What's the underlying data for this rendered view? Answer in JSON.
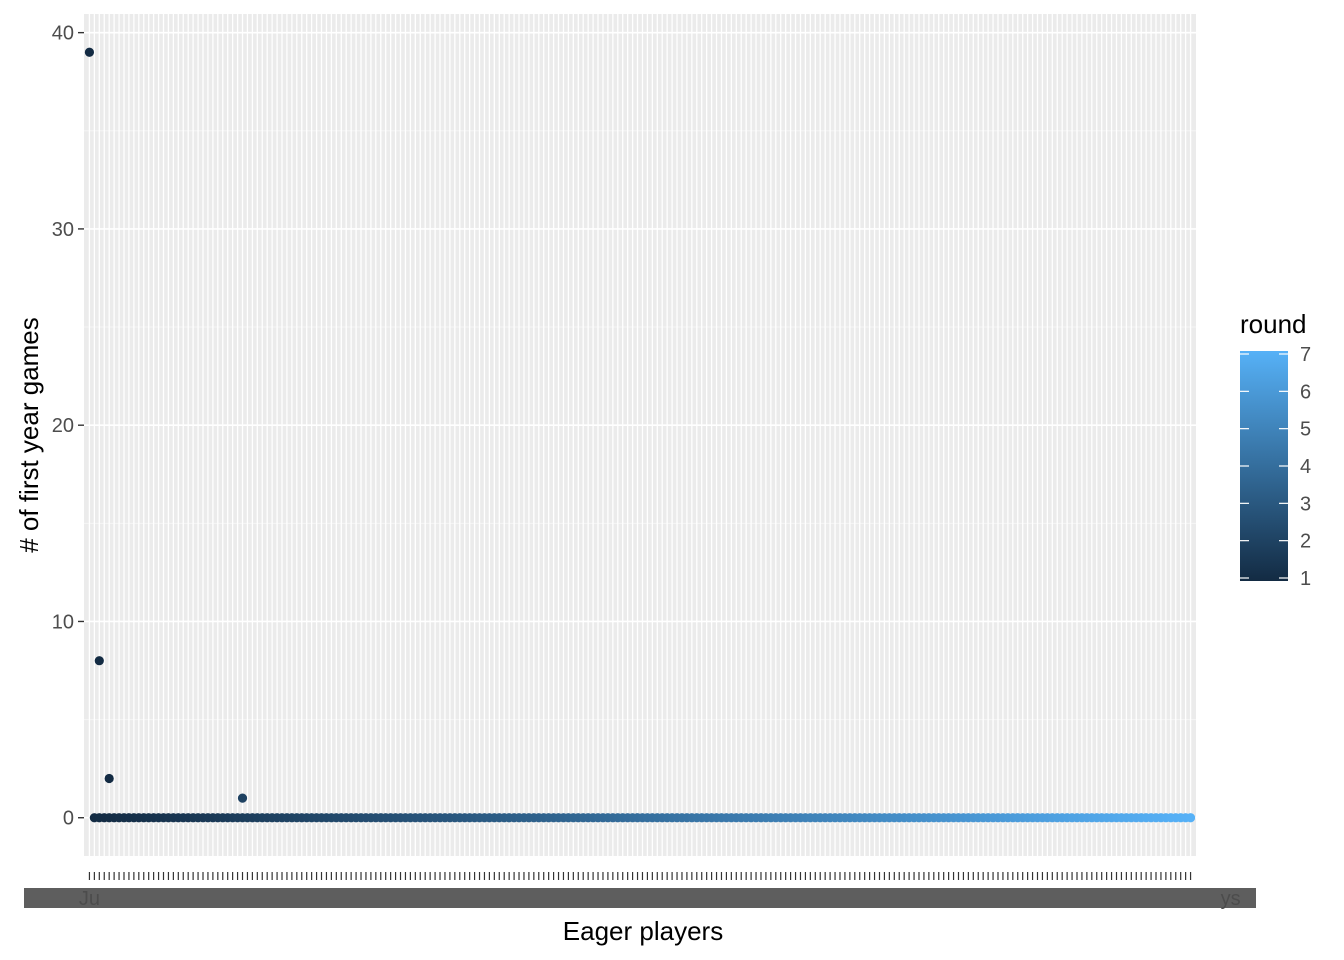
{
  "chart_data": {
    "type": "scatter",
    "title": "",
    "xlabel": "Eager players",
    "ylabel": "# of first year games",
    "ylim": [
      -1.95,
      40.95
    ],
    "yticks": [
      0,
      10,
      20,
      30,
      40
    ],
    "grid": true,
    "n_categories": 224,
    "x_tick_labels_visible": [
      "Ju",
      "ys"
    ],
    "points": [
      {
        "x": 1,
        "y": 39,
        "round": 1
      },
      {
        "x": 3,
        "y": 8,
        "round": 1
      },
      {
        "x": 5,
        "y": 2,
        "round": 1
      },
      {
        "x": 32,
        "y": 1,
        "round": 2
      }
    ],
    "baseline": {
      "y": 0,
      "from_x": 2,
      "to_x": 224,
      "round_from": 1,
      "round_to": 7
    },
    "legend": {
      "title": "round",
      "placement": "right",
      "type": "colorbar",
      "min": 1,
      "max": 7,
      "ticks": [
        1,
        2,
        3,
        4,
        5,
        6,
        7
      ],
      "color_low": "#132B43",
      "color_high": "#56B1F7"
    }
  }
}
